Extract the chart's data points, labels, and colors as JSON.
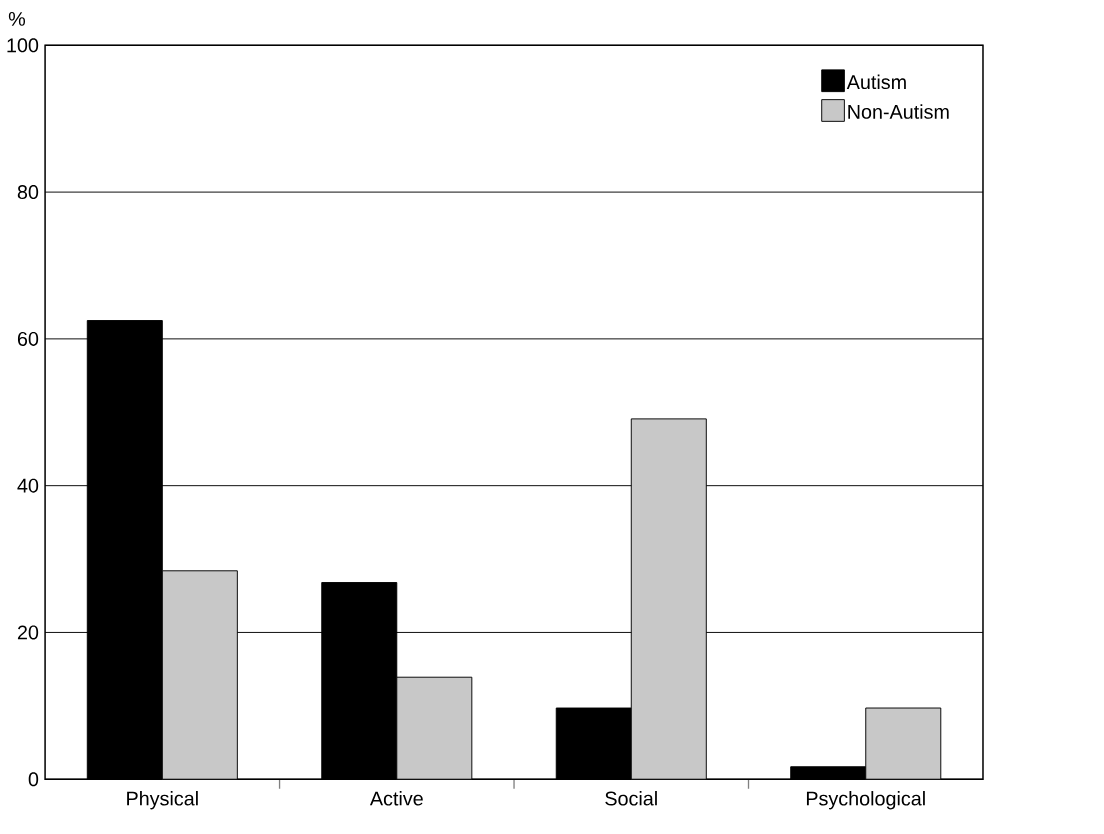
{
  "chart_data": {
    "type": "bar",
    "ylabel": "%",
    "categories": [
      "Physical",
      "Active",
      "Social",
      "Psychological"
    ],
    "series": [
      {
        "name": "Autism",
        "color": "#000000",
        "values": [
          62.5,
          26.8,
          9.7,
          1.7
        ]
      },
      {
        "name": "Non-Autism",
        "color": "#c8c8c8",
        "values": [
          28.4,
          13.9,
          49.1,
          9.7
        ]
      }
    ],
    "ylim": [
      0,
      100
    ],
    "yticks": [
      0,
      20,
      40,
      60,
      80,
      100
    ],
    "grid": "y",
    "legend": "top right"
  }
}
